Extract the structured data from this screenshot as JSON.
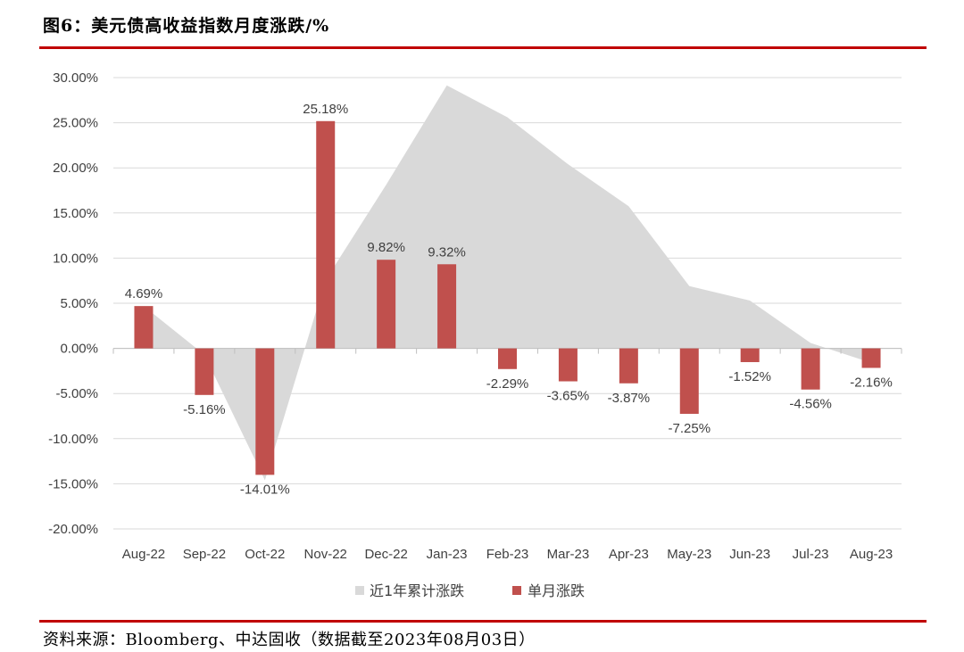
{
  "header": {
    "title": "图6：美元债高收益指数月度涨跌/%"
  },
  "footer": {
    "source": "资料来源：Bloomberg、中达固收（数据截至2023年08月03日）"
  },
  "colors": {
    "bar": "#c0504d",
    "area": "#d9d9d9",
    "rule": "#c00000",
    "grid": "#d9d9d9"
  },
  "chart_data": {
    "type": "bar",
    "categories": [
      "Aug-22",
      "Sep-22",
      "Oct-22",
      "Nov-22",
      "Dec-22",
      "Jan-23",
      "Feb-23",
      "Mar-23",
      "Apr-23",
      "May-23",
      "Jun-23",
      "Jul-23",
      "Aug-23"
    ],
    "yticks": [
      "30.00%",
      "25.00%",
      "20.00%",
      "15.00%",
      "10.00%",
      "5.00%",
      "0.00%",
      "-5.00%",
      "-10.00%",
      "-15.00%",
      "-20.00%"
    ],
    "ylim": [
      -20,
      30
    ],
    "series": [
      {
        "name": "近1年累计涨跌",
        "kind": "area",
        "values": [
          4.69,
          -0.69,
          -14.61,
          7.57,
          18.13,
          29.14,
          25.6,
          20.4,
          15.75,
          6.9,
          5.3,
          0.6,
          -1.6
        ]
      },
      {
        "name": "单月涨跌",
        "kind": "bar",
        "values": [
          4.69,
          -5.16,
          -14.01,
          25.18,
          9.82,
          9.32,
          -2.29,
          -3.65,
          -3.87,
          -7.25,
          -1.52,
          -4.56,
          -2.16
        ],
        "labels": [
          "4.69%",
          "-5.16%",
          "-14.01%",
          "25.18%",
          "9.82%",
          "9.32%",
          "-2.29%",
          "-3.65%",
          "-3.87%",
          "-7.25%",
          "-1.52%",
          "-4.56%",
          "-2.16%"
        ]
      }
    ],
    "legend_position": "bottom",
    "grid": true
  }
}
